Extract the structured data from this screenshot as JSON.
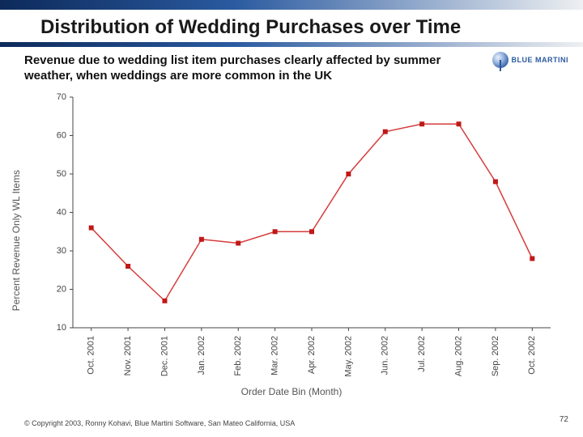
{
  "title": "Distribution of Wedding Purchases over Time",
  "subtitle": "Revenue due to wedding list item purchases clearly affected by summer weather, when weddings are more common in the UK",
  "logo_text": "BLUE MARTINI",
  "footer": "© Copyright 2003, Ronny Kohavi, Blue Martini Software, San Mateo California, USA",
  "page_number": "72",
  "chart": {
    "type": "line",
    "ylabel": "Percent Revenue Only WL Items",
    "xlabel": "Order Date Bin (Month)",
    "ylim": [
      10,
      70
    ],
    "ytick_step": 10,
    "background_color": "#ffffff",
    "axis_color": "#444444",
    "label_color": "#555555",
    "categories": [
      "Oct. 2001",
      "Nov. 2001",
      "Dec. 2001",
      "Jan. 2002",
      "Feb. 2002",
      "Mar. 2002",
      "Apr. 2002",
      "May. 2002",
      "Jun. 2002",
      "Jul. 2002",
      "Aug. 2002",
      "Sep. 2002",
      "Oct. 2002"
    ],
    "values": [
      36,
      26,
      17,
      33,
      32,
      35,
      35,
      50,
      61,
      63,
      63,
      48,
      28
    ],
    "line_color": "#d63b3b",
    "line_width": 1.5,
    "marker_color": "#c01818",
    "marker_shape": "square",
    "marker_size": 6
  }
}
